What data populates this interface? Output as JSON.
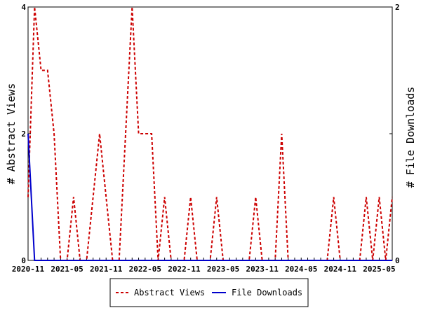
{
  "chart_data": {
    "type": "line",
    "x_tick_labels": [
      "2020-11",
      "2021-05",
      "2021-11",
      "2022-05",
      "2022-11",
      "2023-05",
      "2023-11",
      "2024-05",
      "2024-11",
      "2025-05"
    ],
    "y_left": {
      "label": "# Abstract Views",
      "ylim": [
        0,
        4
      ],
      "ticks": [
        "0",
        "2",
        "4"
      ]
    },
    "y_right": {
      "label": "# File Downloads",
      "ylim": [
        0,
        2
      ],
      "ticks": [
        "0",
        "1",
        "2"
      ]
    },
    "n_months": 57,
    "series": [
      {
        "name": "Abstract Views",
        "axis": "left",
        "color": "#cc0000",
        "style": "dashed",
        "values": [
          1,
          4,
          3,
          3,
          2,
          0,
          0,
          1,
          0,
          0,
          1,
          2,
          1,
          0,
          0,
          2,
          4,
          2,
          2,
          2,
          0,
          1,
          0,
          0,
          0,
          1,
          0,
          0,
          0,
          1,
          0,
          0,
          0,
          0,
          0,
          1,
          0,
          0,
          0,
          2,
          0,
          0,
          0,
          0,
          0,
          0,
          0,
          1,
          0,
          0,
          0,
          0,
          1,
          0,
          1,
          0,
          1
        ]
      },
      {
        "name": "File Downloads",
        "axis": "right",
        "color": "#0000cc",
        "style": "solid",
        "values": [
          1,
          0,
          0,
          0,
          0,
          0,
          0,
          0,
          0,
          0,
          0,
          0,
          0,
          0,
          0,
          0,
          0,
          0,
          0,
          0,
          0,
          0,
          0,
          0,
          0,
          0,
          0,
          0,
          0,
          0,
          0,
          0,
          0,
          0,
          0,
          0,
          0,
          0,
          0,
          0,
          0,
          0,
          0,
          0,
          0,
          0,
          0,
          0,
          0,
          0,
          0,
          0,
          0,
          0,
          0,
          0,
          0
        ]
      }
    ],
    "legend": "bottom",
    "grid": false
  }
}
